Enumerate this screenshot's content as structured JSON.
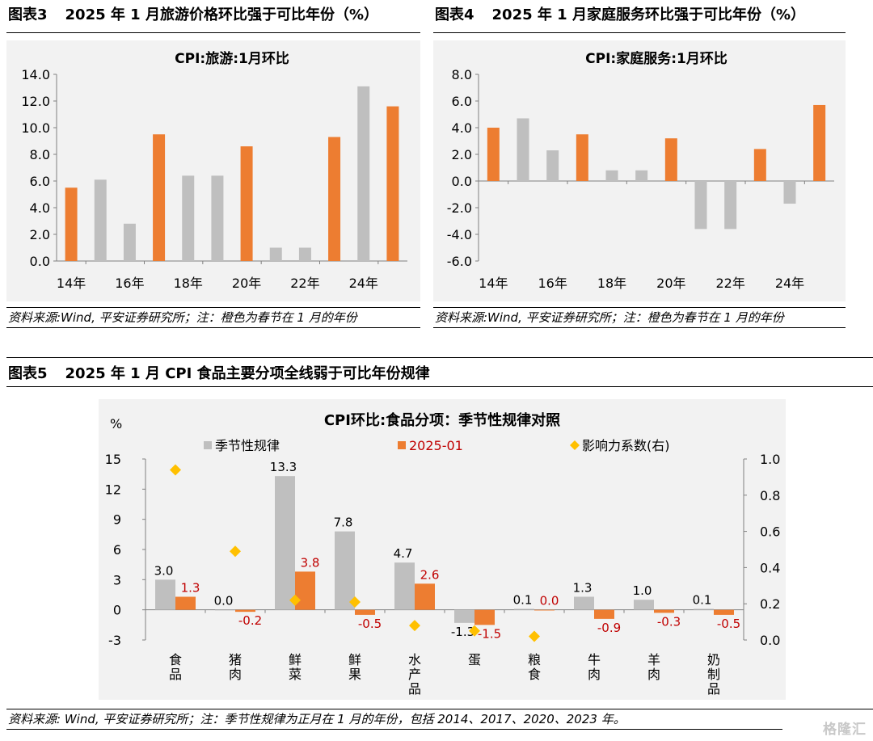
{
  "colors": {
    "gray": "#bfbfbf",
    "orange": "#ed7d31",
    "red_label": "#c00000",
    "yellow": "#ffc000",
    "panel": "#f2f2f2"
  },
  "fig3": {
    "num": "图表3",
    "title": "2025 年 1 月旅游价格环比强于可比年份（%）",
    "source": "资料来源:Wind, 平安证券研究所；注：橙色为春节在 1 月的年份",
    "chart_data": {
      "type": "bar",
      "title": "CPI:旅游:1月环比",
      "ylim": [
        0,
        14
      ],
      "yticks": [
        "14.0",
        "12.0",
        "10.0",
        "8.0",
        "6.0",
        "4.0",
        "2.0",
        "0.0"
      ],
      "categories": [
        "14",
        "15",
        "16",
        "17",
        "18",
        "19",
        "20",
        "21",
        "22",
        "23",
        "24",
        "25"
      ],
      "xtick_labels": [
        "14年",
        "16年",
        "18年",
        "20年",
        "22年",
        "24年"
      ],
      "values": [
        5.5,
        6.1,
        2.8,
        9.5,
        6.4,
        6.4,
        8.6,
        1.0,
        1.0,
        9.3,
        13.1,
        11.6
      ],
      "highlight": [
        true,
        false,
        false,
        true,
        false,
        false,
        true,
        false,
        false,
        true,
        false,
        true
      ]
    }
  },
  "fig4": {
    "num": "图表4",
    "title": "2025 年 1 月家庭服务环比强于可比年份（%）",
    "source": "资料来源:Wind, 平安证券研究所；注：橙色为春节在 1 月的年份",
    "chart_data": {
      "type": "bar",
      "title": "CPI:家庭服务:1月环比",
      "ylim": [
        -6,
        8
      ],
      "yticks": [
        "8.0",
        "6.0",
        "4.0",
        "2.0",
        "0.0",
        "-2.0",
        "-4.0",
        "-6.0"
      ],
      "categories": [
        "14",
        "15",
        "16",
        "17",
        "18",
        "19",
        "20",
        "21",
        "22",
        "23",
        "24",
        "25"
      ],
      "xtick_labels": [
        "14年",
        "16年",
        "18年",
        "20年",
        "22年",
        "24年"
      ],
      "values": [
        4.0,
        4.7,
        2.3,
        3.5,
        0.8,
        0.8,
        3.2,
        -3.6,
        -3.6,
        2.4,
        -1.7,
        5.7
      ],
      "highlight": [
        true,
        false,
        false,
        true,
        false,
        false,
        true,
        false,
        false,
        true,
        false,
        true
      ]
    }
  },
  "fig5": {
    "num": "图表5",
    "title": "2025 年 1 月 CPI 食品主要分项全线弱于可比年份规律",
    "source": "资料来源: Wind, 平安证券研究所；注：季节性规律为正月在 1 月的年份，包括 2014、2017、2020、2023 年。",
    "chart_data": {
      "type": "bar",
      "title": "CPI环比:食品分项：季节性规律对照",
      "yunit": "%",
      "ylim": [
        -3,
        15
      ],
      "yticks": [
        "15",
        "12",
        "9",
        "6",
        "3",
        "0",
        "-3"
      ],
      "y2lim": [
        0,
        1
      ],
      "y2ticks": [
        "1.0",
        "0.8",
        "0.6",
        "0.4",
        "0.2",
        "0.0"
      ],
      "categories": [
        "食品",
        "猪肉",
        "鲜菜",
        "鲜果",
        "水产品",
        "蛋",
        "粮食",
        "牛肉",
        "羊肉",
        "奶制品"
      ],
      "series": [
        {
          "name": "季节性规律",
          "values": [
            3.0,
            0.0,
            13.3,
            7.8,
            4.7,
            -1.3,
            0.1,
            1.3,
            1.0,
            0.1
          ],
          "labels": [
            "3.0",
            "0.0",
            "13.3",
            "7.8",
            "4.7",
            "-1.3",
            "0.1",
            "1.3",
            "1.0",
            "0.1"
          ]
        },
        {
          "name": "2025-01",
          "values": [
            1.3,
            -0.2,
            3.8,
            -0.5,
            2.6,
            -1.5,
            0.0,
            -0.9,
            -0.3,
            -0.5
          ],
          "labels": [
            "1.3",
            "-0.2",
            "3.8",
            "-0.5",
            "2.6",
            "-1.5",
            "0.0",
            "-0.9",
            "-0.3",
            "-0.5"
          ]
        },
        {
          "name": "影响力系数(右)",
          "values": [
            0.94,
            0.49,
            0.22,
            0.21,
            0.08,
            0.05,
            0.02,
            null,
            null,
            null
          ]
        }
      ]
    }
  },
  "watermark": "格隆汇"
}
